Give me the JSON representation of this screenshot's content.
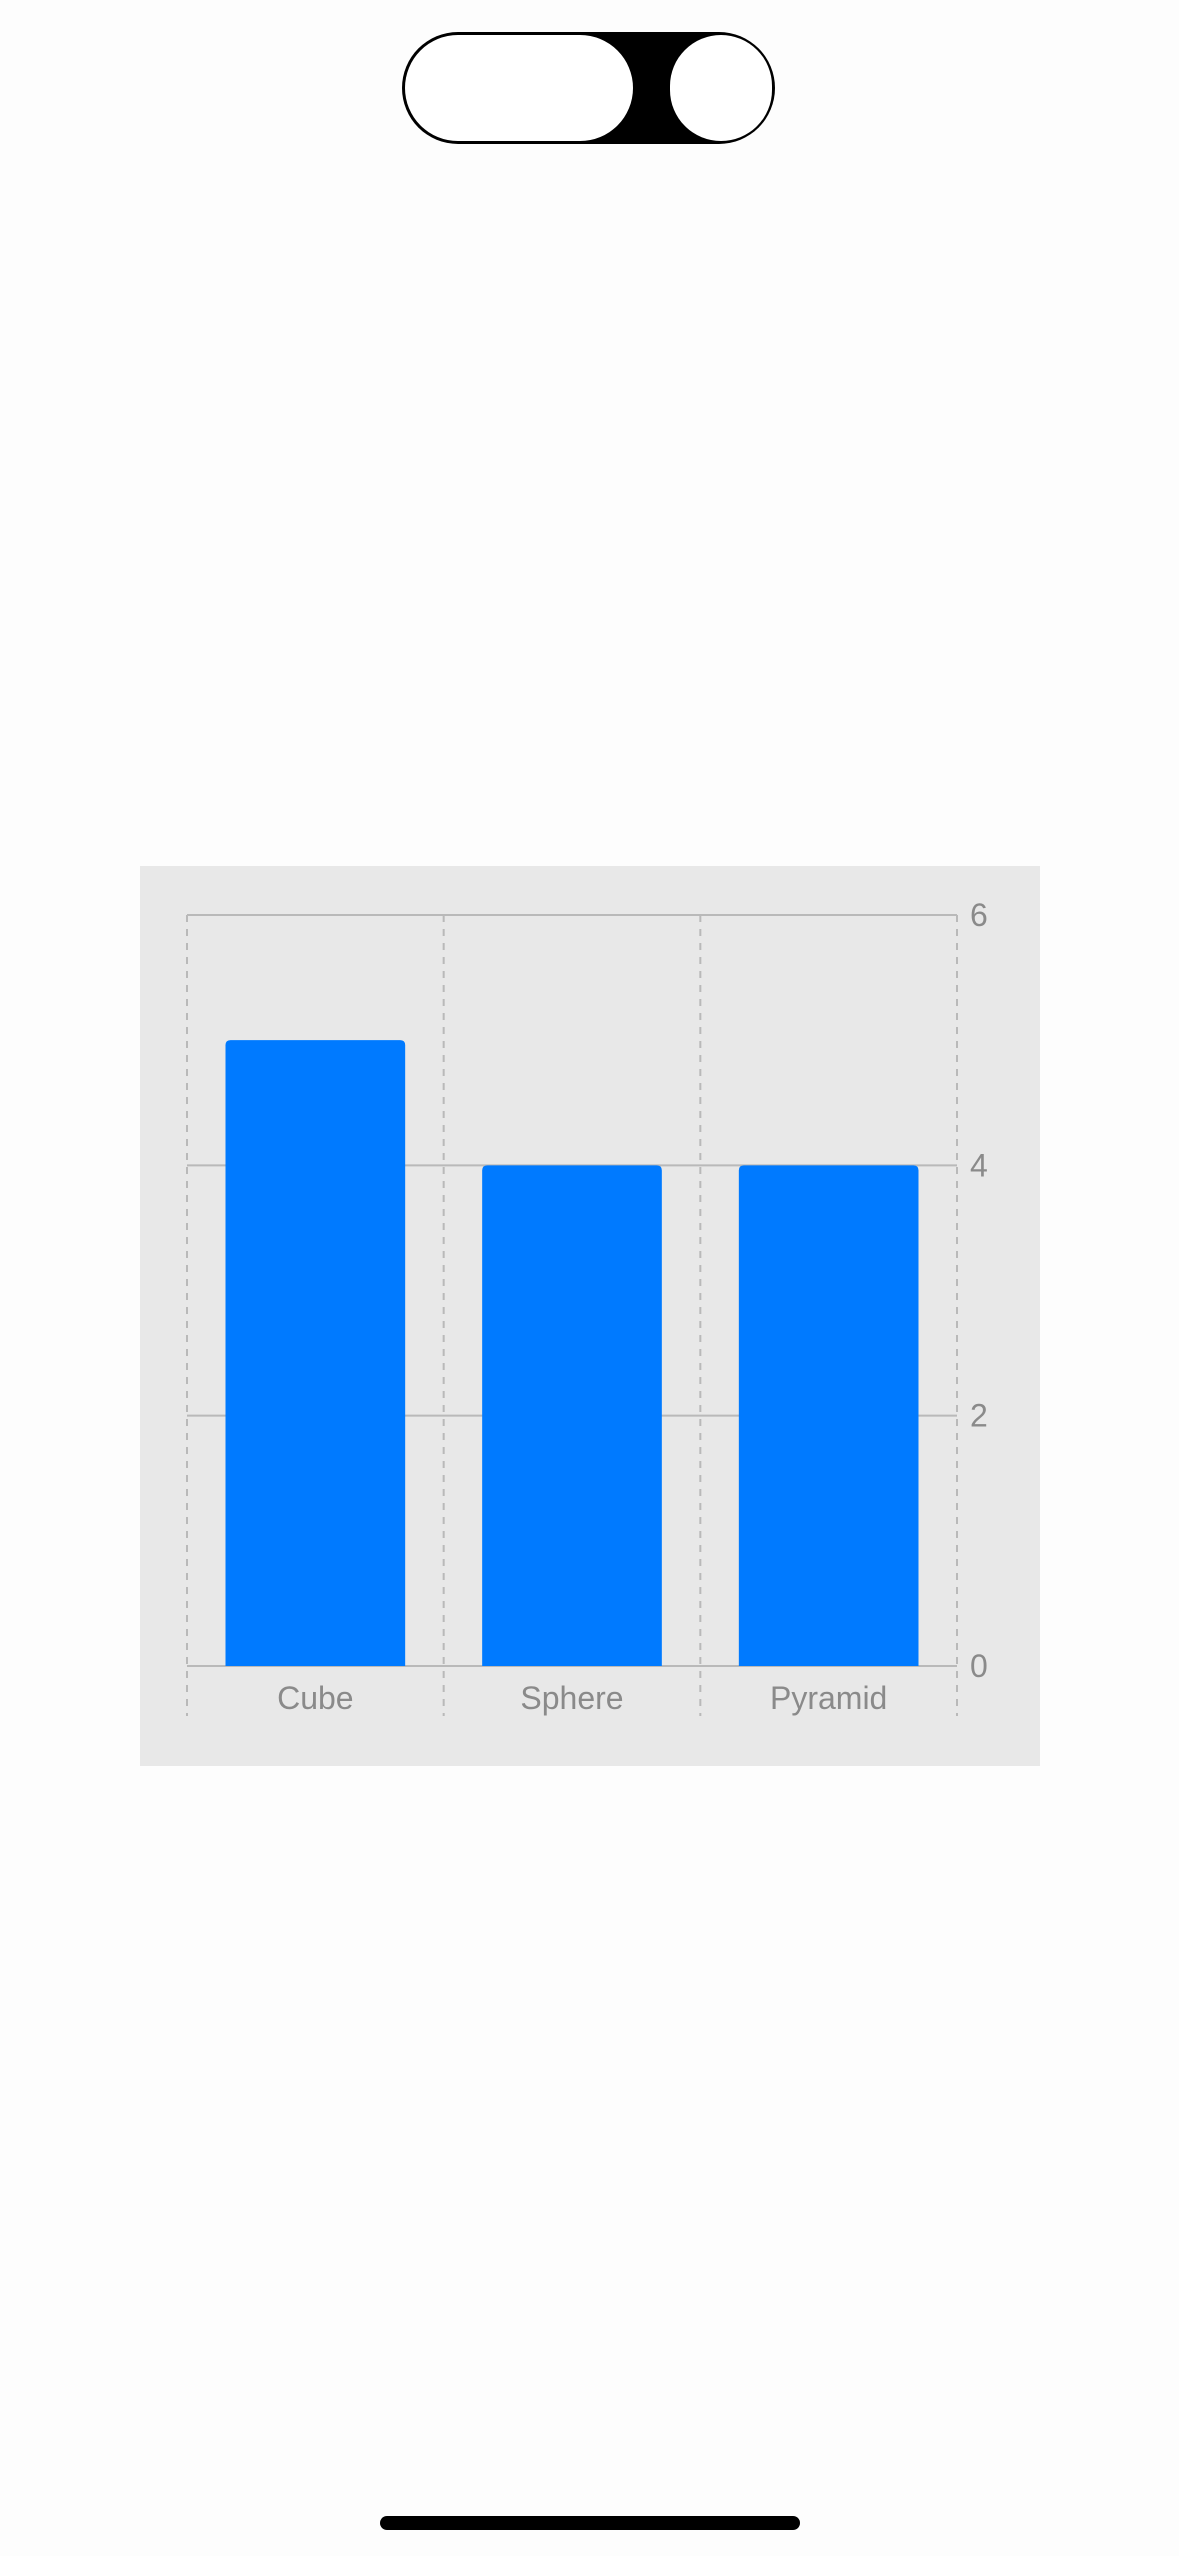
{
  "colors": {
    "bar": "#007aff",
    "background": "#fdfdfd",
    "chart_background": "#e8e8e8",
    "gridline": "#b9b9b9",
    "tick_label": "#8a8a8a"
  },
  "chart_data": {
    "type": "bar",
    "categories": [
      "Cube",
      "Sphere",
      "Pyramid"
    ],
    "values": [
      5,
      4,
      4
    ],
    "ylim": [
      0,
      6
    ],
    "yticks": [
      0,
      2,
      4,
      6
    ],
    "yaxis_position": "right",
    "grid": true,
    "title": "",
    "xlabel": "",
    "ylabel": ""
  }
}
